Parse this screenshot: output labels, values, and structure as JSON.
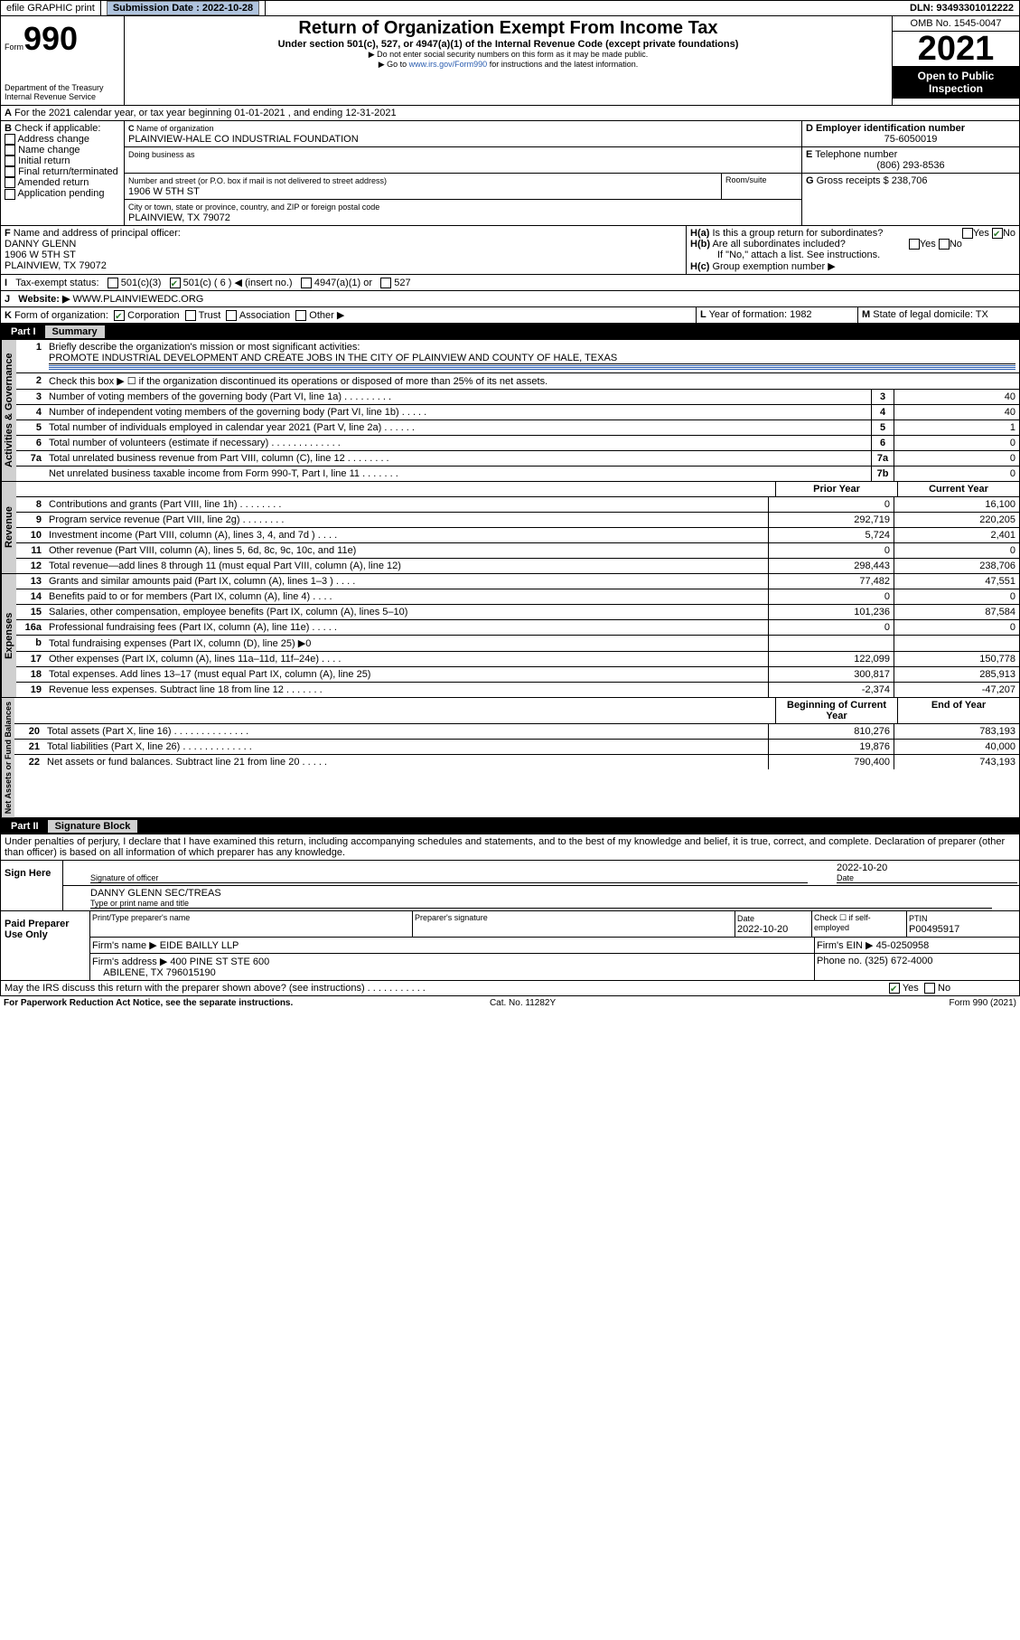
{
  "top": {
    "efile": "efile GRAPHIC print",
    "submission_label": "Submission Date : 2022-10-28",
    "dln": "DLN: 93493301012222"
  },
  "omb": "OMB No. 1545-0047",
  "form_no": "990",
  "form_word": "Form",
  "title": "Return of Organization Exempt From Income Tax",
  "subtitle": "Under section 501(c), 527, or 4947(a)(1) of the Internal Revenue Code (except private foundations)",
  "note1": "▶ Do not enter social security numbers on this form as it may be made public.",
  "note2_pre": "▶ Go to ",
  "note2_link": "www.irs.gov/Form990",
  "note2_post": " for instructions and the latest information.",
  "year": "2021",
  "open": "Open to Public Inspection",
  "dept": "Department of the Treasury Internal Revenue Service",
  "A": "For the 2021 calendar year, or tax year beginning 01-01-2021   , and ending 12-31-2021",
  "B": {
    "label": "Check if applicable:",
    "items": [
      "Address change",
      "Name change",
      "Initial return",
      "Final return/terminated",
      "Amended return",
      "Application pending"
    ]
  },
  "C": {
    "name_label": "Name of organization",
    "name": "PLAINVIEW-HALE CO INDUSTRIAL FOUNDATION",
    "dba_label": "Doing business as",
    "addr_label": "Number and street (or P.O. box if mail is not delivered to street address)",
    "room_label": "Room/suite",
    "street": "1906 W 5TH ST",
    "city_label": "City or town, state or province, country, and ZIP or foreign postal code",
    "city": "PLAINVIEW, TX  79072"
  },
  "D": {
    "label": "Employer identification number",
    "val": "75-6050019"
  },
  "E": {
    "label": "Telephone number",
    "val": "(806) 293-8536"
  },
  "G": {
    "label": "Gross receipts $",
    "val": "238,706"
  },
  "F": {
    "label": "Name and address of principal officer:",
    "lines": [
      "DANNY GLENN",
      "1906 W 5TH ST",
      "PLAINVIEW, TX  79072"
    ]
  },
  "H": {
    "a": "Is this a group return for subordinates?",
    "b": "Are all subordinates included?",
    "bnote": "If \"No,\" attach a list. See instructions.",
    "c": "Group exemption number ▶",
    "yes": "Yes",
    "no": "No"
  },
  "I": {
    "label": "Tax-exempt status:",
    "opts": [
      "501(c)(3)",
      "501(c) ( 6 ) ◀ (insert no.)",
      "4947(a)(1) or",
      "527"
    ]
  },
  "J": {
    "label": "Website: ▶",
    "val": "WWW.PLAINVIEWEDC.ORG"
  },
  "K": {
    "label": "Form of organization:",
    "opts": [
      "Corporation",
      "Trust",
      "Association",
      "Other ▶"
    ]
  },
  "L": {
    "label": "Year of formation:",
    "val": "1982"
  },
  "M": {
    "label": "State of legal domicile:",
    "val": "TX"
  },
  "part1": {
    "num": "Part I",
    "title": "Summary"
  },
  "mission_label": "Briefly describe the organization's mission or most significant activities:",
  "mission": "PROMOTE INDUSTRIAL DEVELOPMENT AND CREATE JOBS IN THE CITY OF PLAINVIEW AND COUNTY OF HALE, TEXAS",
  "line2": "Check this box ▶ ☐  if the organization discontinued its operations or disposed of more than 25% of its net assets.",
  "gov_lines": [
    {
      "n": "3",
      "d": "Number of voting members of the governing body (Part VI, line 1a)  .  .  .  .  .  .  .  .  .",
      "b": "3",
      "v": "40"
    },
    {
      "n": "4",
      "d": "Number of independent voting members of the governing body (Part VI, line 1b)  .  .  .  .  .",
      "b": "4",
      "v": "40"
    },
    {
      "n": "5",
      "d": "Total number of individuals employed in calendar year 2021 (Part V, line 2a)  .  .  .  .  .  .",
      "b": "5",
      "v": "1"
    },
    {
      "n": "6",
      "d": "Total number of volunteers (estimate if necessary)  .  .  .  .  .  .  .  .  .  .  .  .  .",
      "b": "6",
      "v": "0"
    },
    {
      "n": "7a",
      "d": "Total unrelated business revenue from Part VIII, column (C), line 12  .  .  .  .  .  .  .  .",
      "b": "7a",
      "v": "0"
    },
    {
      "n": "",
      "d": "Net unrelated business taxable income from Form 990-T, Part I, line 11  .  .  .  .  .  .  .",
      "b": "7b",
      "v": "0"
    }
  ],
  "rev_hdr": {
    "prior": "Prior Year",
    "curr": "Current Year"
  },
  "rev_lines": [
    {
      "n": "8",
      "d": "Contributions and grants (Part VIII, line 1h)  .  .  .  .  .  .  .  .",
      "p": "0",
      "c": "16,100"
    },
    {
      "n": "9",
      "d": "Program service revenue (Part VIII, line 2g)  .  .  .  .  .  .  .  .",
      "p": "292,719",
      "c": "220,205"
    },
    {
      "n": "10",
      "d": "Investment income (Part VIII, column (A), lines 3, 4, and 7d )  .  .  .  .",
      "p": "5,724",
      "c": "2,401"
    },
    {
      "n": "11",
      "d": "Other revenue (Part VIII, column (A), lines 5, 6d, 8c, 9c, 10c, and 11e)",
      "p": "0",
      "c": "0"
    },
    {
      "n": "12",
      "d": "Total revenue—add lines 8 through 11 (must equal Part VIII, column (A), line 12)",
      "p": "298,443",
      "c": "238,706"
    }
  ],
  "exp_lines": [
    {
      "n": "13",
      "d": "Grants and similar amounts paid (Part IX, column (A), lines 1–3 )  .  .  .  .",
      "p": "77,482",
      "c": "47,551"
    },
    {
      "n": "14",
      "d": "Benefits paid to or for members (Part IX, column (A), line 4)  .  .  .  .",
      "p": "0",
      "c": "0"
    },
    {
      "n": "15",
      "d": "Salaries, other compensation, employee benefits (Part IX, column (A), lines 5–10)",
      "p": "101,236",
      "c": "87,584"
    },
    {
      "n": "16a",
      "d": "Professional fundraising fees (Part IX, column (A), line 11e)  .  .  .  .  .",
      "p": "0",
      "c": "0"
    },
    {
      "n": "b",
      "d": "Total fundraising expenses (Part IX, column (D), line 25) ▶0",
      "p": "",
      "c": ""
    },
    {
      "n": "17",
      "d": "Other expenses (Part IX, column (A), lines 11a–11d, 11f–24e)  .  .  .  .",
      "p": "122,099",
      "c": "150,778"
    },
    {
      "n": "18",
      "d": "Total expenses. Add lines 13–17 (must equal Part IX, column (A), line 25)",
      "p": "300,817",
      "c": "285,913"
    },
    {
      "n": "19",
      "d": "Revenue less expenses. Subtract line 18 from line 12  .  .  .  .  .  .  .",
      "p": "-2,374",
      "c": "-47,207"
    }
  ],
  "na_hdr": {
    "prior": "Beginning of Current Year",
    "curr": "End of Year"
  },
  "na_lines": [
    {
      "n": "20",
      "d": "Total assets (Part X, line 16)  .  .  .  .  .  .  .  .  .  .  .  .  .  .",
      "p": "810,276",
      "c": "783,193"
    },
    {
      "n": "21",
      "d": "Total liabilities (Part X, line 26)  .  .  .  .  .  .  .  .  .  .  .  .  .",
      "p": "19,876",
      "c": "40,000"
    },
    {
      "n": "22",
      "d": "Net assets or fund balances. Subtract line 21 from line 20  .  .  .  .  .",
      "p": "790,400",
      "c": "743,193"
    }
  ],
  "vtabs": {
    "gov": "Activities & Governance",
    "rev": "Revenue",
    "exp": "Expenses",
    "na": "Net Assets or Fund Balances"
  },
  "part2": {
    "num": "Part II",
    "title": "Signature Block"
  },
  "penalties": "Under penalties of perjury, I declare that I have examined this return, including accompanying schedules and statements, and to the best of my knowledge and belief, it is true, correct, and complete. Declaration of preparer (other than officer) is based on all information of which preparer has any knowledge.",
  "sign": {
    "here": "Sign Here",
    "date": "2022-10-20",
    "sig_label": "Signature of officer",
    "date_label": "Date",
    "name": "DANNY GLENN  SEC/TREAS",
    "name_label": "Type or print name and title"
  },
  "paid": {
    "title": "Paid Preparer Use Only",
    "cols": [
      "Print/Type preparer's name",
      "Preparer's signature",
      "Date",
      "",
      "PTIN"
    ],
    "date": "2022-10-20",
    "check_label": "Check ☐ if self-employed",
    "ptin": "P00495917",
    "firm_label": "Firm's name   ▶",
    "firm": "EIDE BAILLY LLP",
    "ein_label": "Firm's EIN ▶",
    "ein": "45-0250958",
    "addr_label": "Firm's address ▶",
    "addr": "400 PINE ST STE 600",
    "addr2": "ABILENE, TX  796015190",
    "phone_label": "Phone no.",
    "phone": "(325) 672-4000"
  },
  "discuss": "May the IRS discuss this return with the preparer shown above? (see instructions)  .  .  .  .  .  .  .  .  .  .  .",
  "footer": {
    "l": "For Paperwork Reduction Act Notice, see the separate instructions.",
    "c": "Cat. No. 11282Y",
    "r": "Form 990 (2021)"
  }
}
